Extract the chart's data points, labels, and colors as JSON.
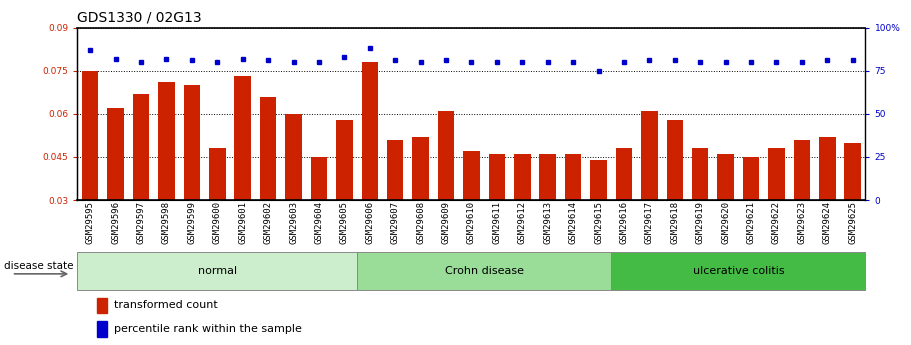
{
  "title": "GDS1330 / 02G13",
  "samples": [
    "GSM29595",
    "GSM29596",
    "GSM29597",
    "GSM29598",
    "GSM29599",
    "GSM29600",
    "GSM29601",
    "GSM29602",
    "GSM29603",
    "GSM29604",
    "GSM29605",
    "GSM29606",
    "GSM29607",
    "GSM29608",
    "GSM29609",
    "GSM29610",
    "GSM29611",
    "GSM29612",
    "GSM29613",
    "GSM29614",
    "GSM29615",
    "GSM29616",
    "GSM29617",
    "GSM29618",
    "GSM29619",
    "GSM29620",
    "GSM29621",
    "GSM29622",
    "GSM29623",
    "GSM29624",
    "GSM29625"
  ],
  "transformed_count": [
    0.075,
    0.062,
    0.067,
    0.071,
    0.07,
    0.048,
    0.073,
    0.066,
    0.06,
    0.045,
    0.058,
    0.078,
    0.051,
    0.052,
    0.061,
    0.047,
    0.046,
    0.046,
    0.046,
    0.046,
    0.044,
    0.048,
    0.061,
    0.058,
    0.048,
    0.046,
    0.045,
    0.048,
    0.051,
    0.052,
    0.05
  ],
  "percentile_rank": [
    87,
    82,
    80,
    82,
    81,
    80,
    82,
    81,
    80,
    80,
    83,
    88,
    81,
    80,
    81,
    80,
    80,
    80,
    80,
    80,
    75,
    80,
    81,
    81,
    80,
    80,
    80,
    80,
    80,
    81,
    81
  ],
  "groups": [
    {
      "label": "normal",
      "start": 0,
      "end": 11,
      "color": "#cceecc"
    },
    {
      "label": "Crohn disease",
      "start": 11,
      "end": 21,
      "color": "#99dd99"
    },
    {
      "label": "ulcerative colitis",
      "start": 21,
      "end": 31,
      "color": "#44bb44"
    }
  ],
  "ylim_left": [
    0.03,
    0.09
  ],
  "ylim_right": [
    0,
    100
  ],
  "yticks_left": [
    0.03,
    0.045,
    0.06,
    0.075,
    0.09
  ],
  "yticks_right": [
    0,
    25,
    50,
    75,
    100
  ],
  "bar_color": "#cc2200",
  "dot_color": "#0000cc",
  "grid_color": "#000000",
  "title_fontsize": 10,
  "tick_fontsize": 6.5,
  "label_fontsize": 8,
  "group_fontsize": 8,
  "disease_state_label": "disease state"
}
